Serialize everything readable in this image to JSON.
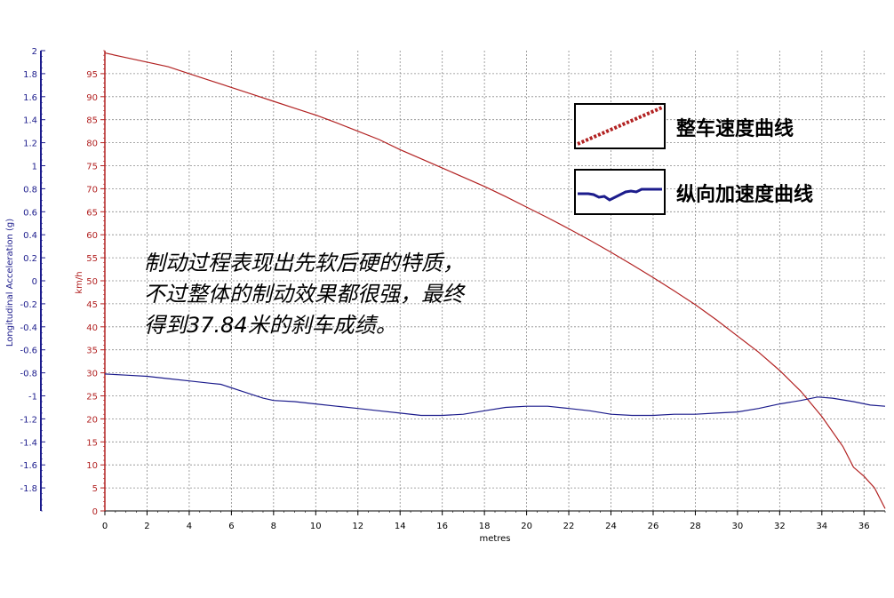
{
  "chart_data": {
    "type": "line",
    "xlabel": "metres",
    "y_left_label": "Longitudinal Acceleration (g)",
    "y_right_label": "km/h",
    "xlim": [
      0,
      37
    ],
    "ylim_left": [
      -2,
      2
    ],
    "ylim_right": [
      0,
      100
    ],
    "x_ticks": [
      0,
      2,
      4,
      6,
      8,
      10,
      12,
      14,
      16,
      18,
      20,
      22,
      24,
      26,
      28,
      30,
      32,
      34,
      36
    ],
    "y_left_ticks": [
      2,
      1.8,
      1.6,
      1.4,
      1.2,
      1,
      0.8,
      0.6,
      0.4,
      0.2,
      0,
      -0.2,
      -0.4,
      -0.6,
      -0.8,
      -1,
      -1.2,
      -1.4,
      -1.6,
      -1.8
    ],
    "y_right_ticks": [
      95,
      90,
      85,
      80,
      75,
      70,
      65,
      60,
      55,
      50,
      45,
      40,
      35,
      30,
      25,
      20,
      15,
      10,
      5,
      0
    ],
    "grid": true,
    "series": [
      {
        "name": "整车速度曲线",
        "axis": "right",
        "color": "#b22222",
        "points": [
          [
            0,
            99.5
          ],
          [
            1,
            98.5
          ],
          [
            2,
            97.5
          ],
          [
            3,
            96.5
          ],
          [
            4,
            95
          ],
          [
            5,
            93.5
          ],
          [
            6,
            92
          ],
          [
            7,
            90.5
          ],
          [
            8,
            89
          ],
          [
            9,
            87.5
          ],
          [
            10,
            86
          ],
          [
            11,
            84.3
          ],
          [
            12,
            82.5
          ],
          [
            13,
            80.7
          ],
          [
            14,
            78.5
          ],
          [
            15,
            76.5
          ],
          [
            16,
            74.5
          ],
          [
            17,
            72.5
          ],
          [
            18,
            70.5
          ],
          [
            19,
            68.3
          ],
          [
            20,
            66
          ],
          [
            21,
            63.7
          ],
          [
            22,
            61.3
          ],
          [
            23,
            58.8
          ],
          [
            24,
            56.2
          ],
          [
            25,
            53.5
          ],
          [
            26,
            50.7
          ],
          [
            27,
            47.8
          ],
          [
            28,
            44.8
          ],
          [
            29,
            41.5
          ],
          [
            30,
            38
          ],
          [
            31,
            34.5
          ],
          [
            32,
            30.5
          ],
          [
            33,
            26
          ],
          [
            34,
            20.5
          ],
          [
            35,
            14
          ],
          [
            35.5,
            9.5
          ],
          [
            36,
            7.5
          ],
          [
            36.5,
            5
          ],
          [
            37,
            0.5
          ]
        ]
      },
      {
        "name": "纵向加速度曲线",
        "axis": "left",
        "color": "#1c1c8c",
        "points": [
          [
            0,
            -0.81
          ],
          [
            1,
            -0.82
          ],
          [
            2,
            -0.83
          ],
          [
            3,
            -0.85
          ],
          [
            4,
            -0.87
          ],
          [
            5,
            -0.89
          ],
          [
            5.5,
            -0.9
          ],
          [
            6.5,
            -0.96
          ],
          [
            7.5,
            -1.02
          ],
          [
            8,
            -1.04
          ],
          [
            9,
            -1.05
          ],
          [
            10,
            -1.07
          ],
          [
            11,
            -1.09
          ],
          [
            12,
            -1.11
          ],
          [
            13,
            -1.13
          ],
          [
            14,
            -1.15
          ],
          [
            15,
            -1.17
          ],
          [
            16,
            -1.17
          ],
          [
            17,
            -1.16
          ],
          [
            18,
            -1.13
          ],
          [
            19,
            -1.1
          ],
          [
            20,
            -1.09
          ],
          [
            21,
            -1.09
          ],
          [
            22,
            -1.11
          ],
          [
            23,
            -1.13
          ],
          [
            24,
            -1.16
          ],
          [
            25,
            -1.17
          ],
          [
            26,
            -1.17
          ],
          [
            27,
            -1.16
          ],
          [
            28,
            -1.16
          ],
          [
            29,
            -1.15
          ],
          [
            30,
            -1.14
          ],
          [
            31,
            -1.11
          ],
          [
            32,
            -1.07
          ],
          [
            33,
            -1.04
          ],
          [
            33.8,
            -1.01
          ],
          [
            34.5,
            -1.02
          ],
          [
            35.5,
            -1.05
          ],
          [
            36.3,
            -1.08
          ],
          [
            37,
            -1.09
          ]
        ]
      }
    ]
  },
  "legend": {
    "speed_label": "整车速度曲线",
    "accel_label": "纵向加速度曲线"
  },
  "annotation": {
    "line1": "制动过程表现出先软后硬的特质，",
    "line2": "不过整体的制动效果都很强，最终",
    "line3": "得到37.84米的刹车成绩。"
  }
}
